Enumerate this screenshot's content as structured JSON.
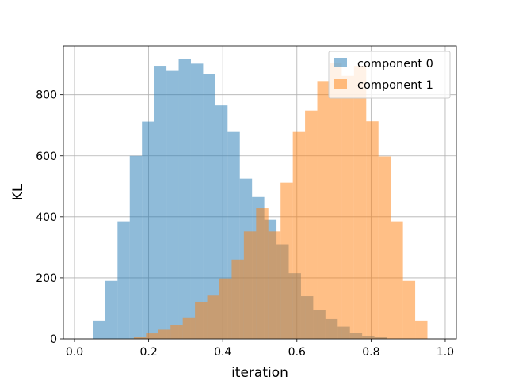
{
  "chart_data": {
    "type": "bar",
    "title": "",
    "xlabel": "iteration",
    "ylabel": "KL",
    "xlim": [
      -0.03,
      1.03
    ],
    "ylim": [
      0,
      960
    ],
    "xticks": [
      0.0,
      0.2,
      0.4,
      0.6,
      0.8,
      1.0
    ],
    "xtick_labels": [
      "0.0",
      "0.2",
      "0.4",
      "0.6",
      "0.8",
      "1.0"
    ],
    "yticks": [
      0,
      200,
      400,
      600,
      800
    ],
    "ytick_labels": [
      "0",
      "200",
      "400",
      "600",
      "800"
    ],
    "grid": true,
    "legend_position": "top-right",
    "series": [
      {
        "name": "component 0",
        "color": "#1f77b4",
        "opacity": 0.5,
        "bin_edges": [
          0.05,
          0.083,
          0.116,
          0.149,
          0.182,
          0.215,
          0.248,
          0.281,
          0.314,
          0.347,
          0.38,
          0.413,
          0.446,
          0.479,
          0.512,
          0.545,
          0.578,
          0.611,
          0.644,
          0.677,
          0.71,
          0.743,
          0.776,
          0.809,
          0.842
        ],
        "values": [
          60,
          190,
          385,
          600,
          712,
          895,
          878,
          918,
          902,
          868,
          765,
          678,
          525,
          465,
          390,
          310,
          215,
          140,
          95,
          65,
          40,
          20,
          10,
          5
        ]
      },
      {
        "name": "component 1",
        "color": "#ff7f0e",
        "opacity": 0.5,
        "bin_edges": [
          0.16,
          0.193,
          0.226,
          0.259,
          0.292,
          0.325,
          0.358,
          0.391,
          0.424,
          0.457,
          0.49,
          0.523,
          0.556,
          0.589,
          0.622,
          0.655,
          0.688,
          0.721,
          0.754,
          0.787,
          0.82,
          0.853,
          0.886,
          0.919,
          0.952
        ],
        "values": [
          5,
          18,
          30,
          45,
          68,
          122,
          142,
          198,
          260,
          352,
          428,
          352,
          512,
          678,
          748,
          845,
          903,
          862,
          895,
          713,
          598,
          385,
          190,
          60
        ]
      }
    ]
  }
}
